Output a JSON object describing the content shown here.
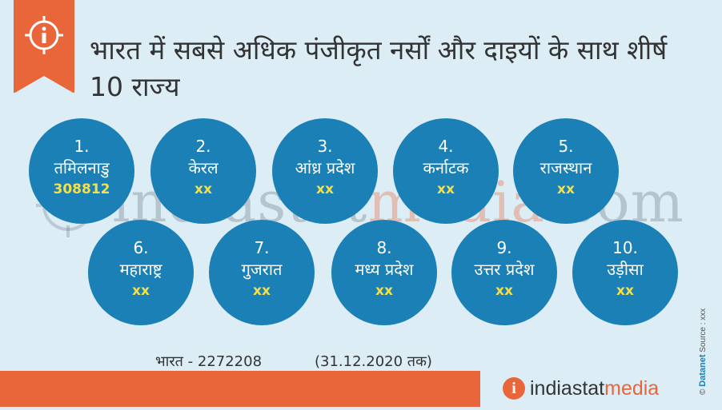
{
  "title": "भारत में सबसे अधिक पंजीकृत नर्सों और दाइयों के साथ शीर्ष 10 राज्य",
  "watermark": {
    "part1": "indiastat",
    "part2": "media",
    "part3": ".com"
  },
  "states": [
    {
      "rank": "1.",
      "name": "तमिलनाडु",
      "value": "308812"
    },
    {
      "rank": "2.",
      "name": "केरल",
      "value": "xx"
    },
    {
      "rank": "3.",
      "name": "आंध्र प्रदेश",
      "value": "xx"
    },
    {
      "rank": "4.",
      "name": "कर्नाटक",
      "value": "xx"
    },
    {
      "rank": "5.",
      "name": "राजस्थान",
      "value": "xx"
    },
    {
      "rank": "6.",
      "name": "महाराष्ट्र",
      "value": "xx"
    },
    {
      "rank": "7.",
      "name": "गुजरात",
      "value": "xx"
    },
    {
      "rank": "8.",
      "name": "मध्य प्रदेश",
      "value": "xx"
    },
    {
      "rank": "9.",
      "name": "उत्तर प्रदेश",
      "value": "xx"
    },
    {
      "rank": "10.",
      "name": "उड़ीसा",
      "value": "xx"
    }
  ],
  "total": "भारत - 2272208",
  "date_note": "(31.12.2020 तक)",
  "brand": {
    "part1": "indiastat",
    "part2": "media",
    "icon": "i"
  },
  "credit": {
    "copyright": "©",
    "name": "Datanet",
    "source": "Source : xxx"
  },
  "colors": {
    "orange": "#e8663a",
    "circle_blue": "#1b80b6",
    "background": "#dcedf6",
    "value_yellow": "#f4e04a"
  },
  "icons": [
    "info-icon"
  ]
}
